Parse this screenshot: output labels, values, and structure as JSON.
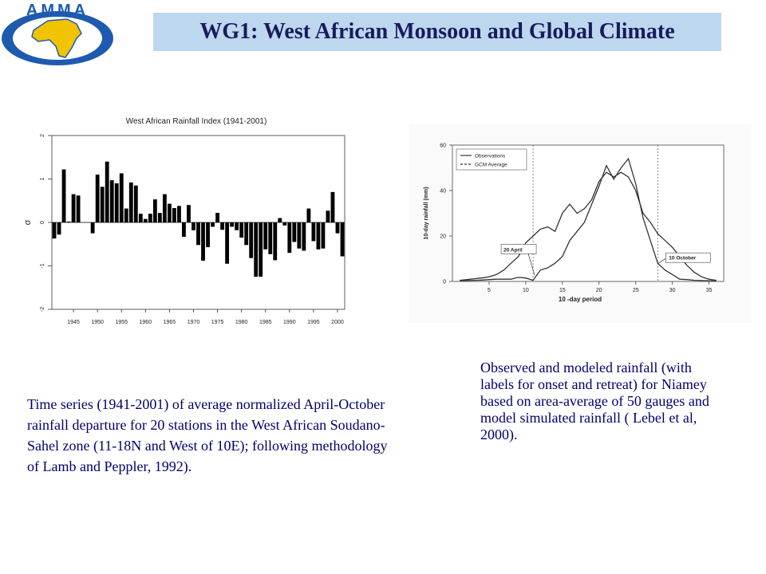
{
  "header": {
    "logo_text": "AMMA",
    "title": "WG1: West African Monsoon and Global Climate"
  },
  "colors": {
    "title_bg": "#bdd7ee",
    "title_text": "#1a1a5e",
    "caption_text": "#00006e",
    "logo_blue": "#1e5bb0",
    "logo_yellow": "#f2c300"
  },
  "captions": {
    "left": "Time series (1941-2001) of average normalized April-October rainfall departure for 20 stations in the West African Soudano-Sahel zone (11-18N and West of 10E); following methodology of Lamb and Peppler, 1992).",
    "right": "Observed and modeled rainfall (with labels for onset and retreat) for Niamey based on area-average of 50 gauges and model simulated rainfall ( Lebel et al, 2000)."
  },
  "chart_data": [
    {
      "type": "bar",
      "title": "West African Rainfall Index (1941-2001)",
      "xlabel": "",
      "ylabel": "σ",
      "ylim": [
        -2,
        2
      ],
      "yticks": [
        "-2",
        "-1",
        "0",
        "1",
        "2"
      ],
      "xticks": [
        "1945",
        "1950",
        "1955",
        "1960",
        "1965",
        "1970",
        "1975",
        "1980",
        "1985",
        "1990",
        "1995",
        "2000"
      ],
      "x_start": 1941,
      "values": [
        -0.37,
        -0.28,
        1.22,
        0.02,
        0.65,
        0.62,
        0.0,
        0.0,
        -0.25,
        1.1,
        0.82,
        1.4,
        0.97,
        0.9,
        1.13,
        0.32,
        0.92,
        0.85,
        0.2,
        0.08,
        0.2,
        0.53,
        0.22,
        0.65,
        0.43,
        0.33,
        0.38,
        -0.33,
        0.4,
        -0.18,
        -0.52,
        -0.88,
        -0.57,
        -0.1,
        0.22,
        -0.17,
        -0.95,
        -0.1,
        -0.18,
        -0.35,
        -0.52,
        -0.82,
        -1.25,
        -1.25,
        -0.62,
        -0.73,
        -0.87,
        0.1,
        -0.07,
        -0.7,
        -0.45,
        -0.6,
        -0.65,
        0.32,
        -0.43,
        -0.62,
        -0.6,
        0.27,
        0.7,
        -0.25,
        -0.78
      ]
    },
    {
      "type": "line",
      "title": "",
      "xlabel": "10 -day period",
      "ylabel": "10-day rainfall (mm)",
      "xlim": [
        0,
        37
      ],
      "ylim": [
        0,
        60
      ],
      "xticks": [
        "5",
        "10",
        "15",
        "20",
        "25",
        "30",
        "35"
      ],
      "yticks": [
        "0",
        "20",
        "40",
        "60"
      ],
      "legend": {
        "position": "top-left",
        "entries": [
          "Observations",
          "GCM Average"
        ]
      },
      "vertical_lines": [
        11,
        28
      ],
      "annotations": [
        {
          "text": "20 April",
          "x": 11,
          "y": 2
        },
        {
          "text": "10 October",
          "x": 28,
          "y": 8
        }
      ],
      "series": [
        {
          "name": "Observations",
          "x": [
            1,
            2,
            3,
            4,
            5,
            6,
            7,
            8,
            9,
            10,
            11,
            12,
            13,
            14,
            15,
            16,
            17,
            18,
            19,
            20,
            21,
            22,
            23,
            24,
            25,
            26,
            27,
            28,
            29,
            30,
            31,
            32,
            33,
            34,
            35,
            36
          ],
          "values": [
            0.3,
            0.4,
            0.5,
            0.6,
            0.8,
            1.0,
            1.0,
            1.0,
            1.8,
            1.5,
            0.5,
            5.0,
            6.0,
            8.0,
            11.0,
            18.0,
            22.0,
            26.0,
            34.0,
            42.0,
            51.0,
            45.0,
            50.0,
            54.0,
            43.0,
            28.0,
            18.0,
            8.0,
            5.0,
            3.0,
            1.0,
            0.8,
            0.5,
            0.4,
            0.3,
            0.2
          ]
        },
        {
          "name": "GCM Average",
          "x": [
            1,
            2,
            3,
            4,
            5,
            6,
            7,
            8,
            9,
            10,
            11,
            12,
            13,
            14,
            15,
            16,
            17,
            18,
            19,
            20,
            21,
            22,
            23,
            24,
            25,
            26,
            27,
            28,
            29,
            30,
            31,
            32,
            33,
            34,
            35,
            36
          ],
          "values": [
            0.5,
            0.8,
            1.2,
            1.5,
            2.0,
            3.0,
            5.0,
            8.0,
            11.0,
            17.0,
            20.0,
            23.0,
            24.0,
            22.0,
            30.0,
            34.0,
            30.0,
            32.0,
            36.0,
            44.0,
            48.0,
            46.0,
            48.0,
            46.0,
            40.0,
            30.0,
            26.0,
            21.0,
            18.0,
            15.0,
            11.0,
            7.0,
            4.0,
            2.0,
            1.0,
            0.5
          ]
        }
      ]
    }
  ]
}
